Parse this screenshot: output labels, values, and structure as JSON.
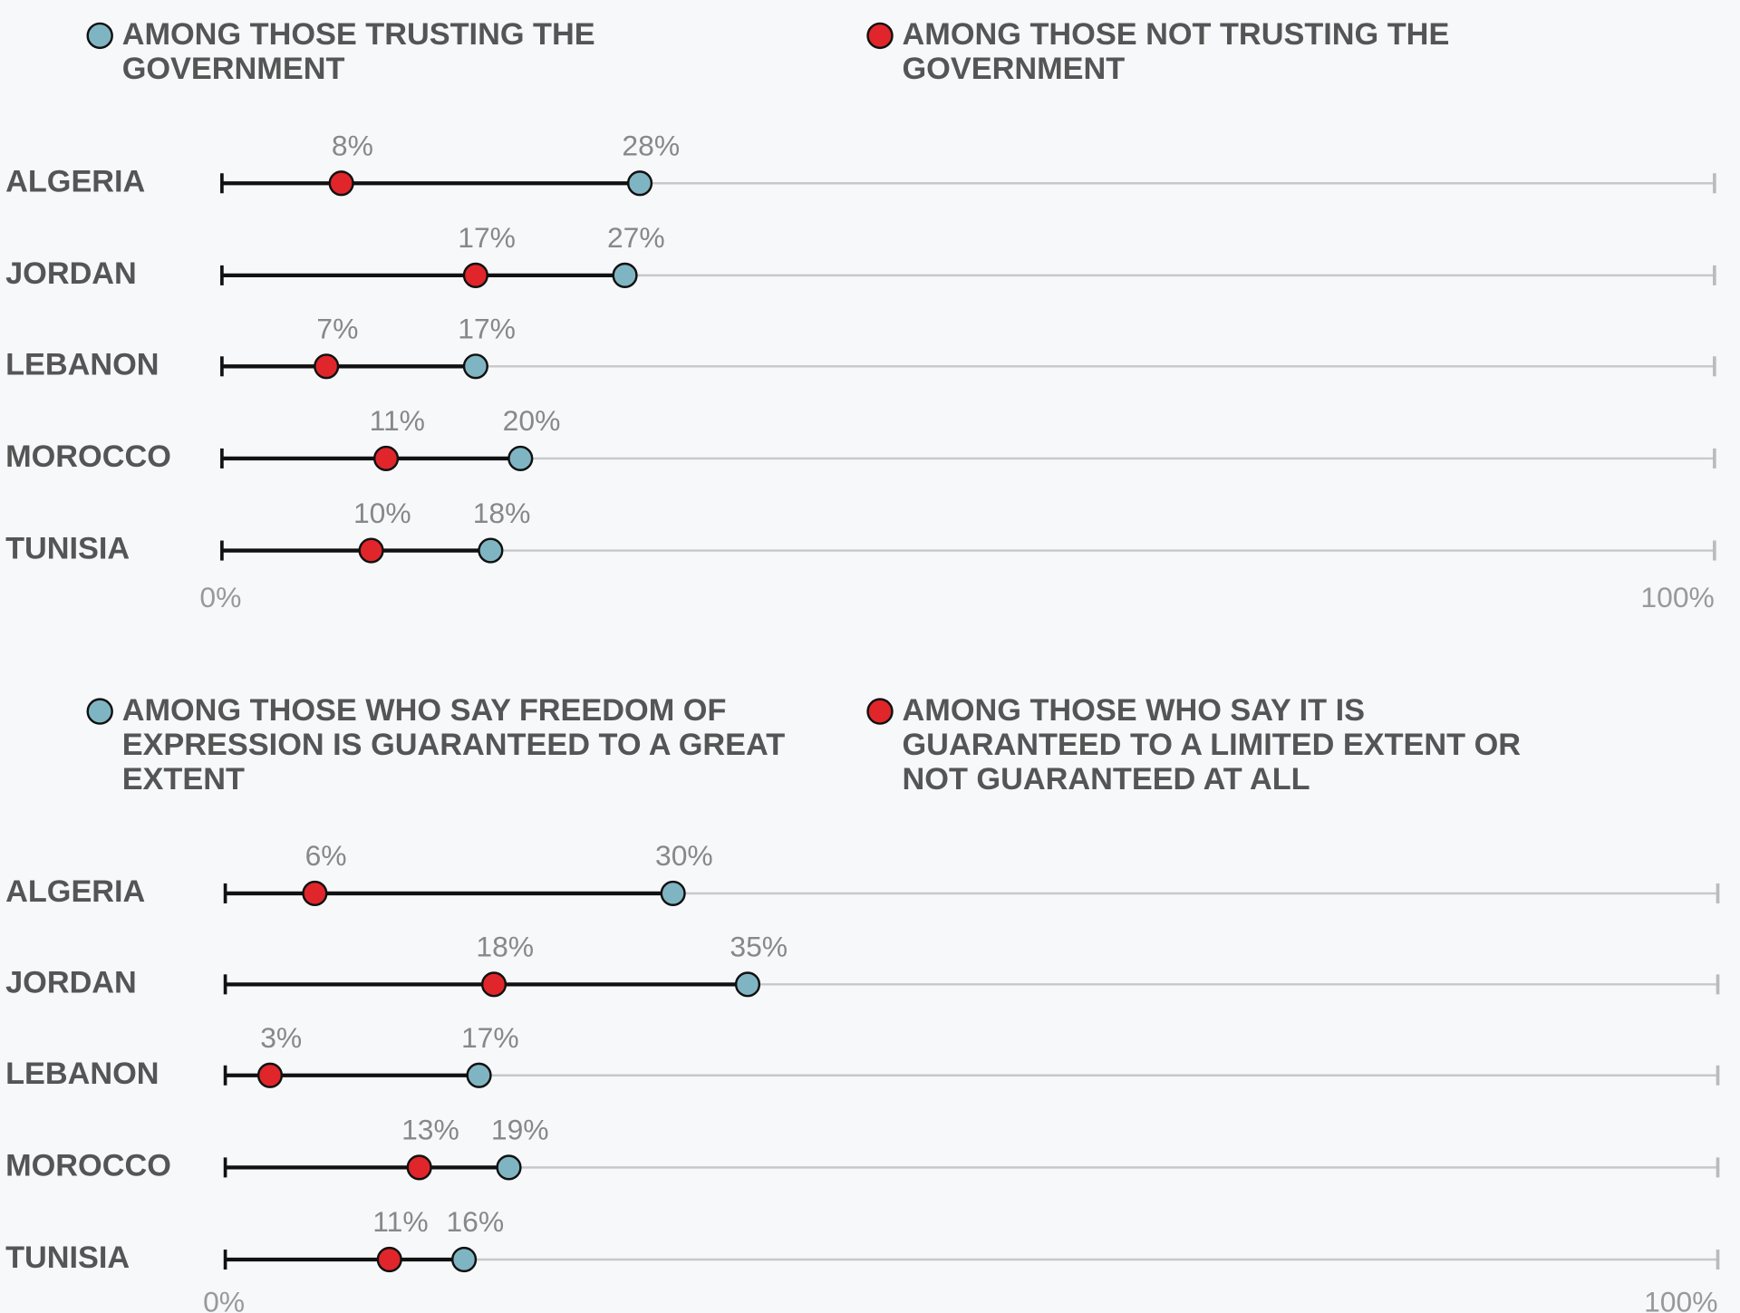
{
  "chart_data": [
    {
      "type": "dumbbell",
      "categories": [
        "ALGERIA",
        "JORDAN",
        "LEBANON",
        "MOROCCO",
        "TUNISIA"
      ],
      "series": [
        {
          "name": "AMONG THOSE TRUSTING THE GOVERNMENT",
          "color": "#7fb5c2",
          "values": [
            28,
            27,
            17,
            20,
            18
          ],
          "value_labels": [
            "28%",
            "27%",
            "17%",
            "20%",
            "18%"
          ]
        },
        {
          "name": "AMONG THOSE NOT TRUSTING THE GOVERNMENT",
          "color": "#e0262b",
          "values": [
            8,
            17,
            7,
            11,
            10
          ],
          "value_labels": [
            "8%",
            "17%",
            "7%",
            "11%",
            "10%"
          ]
        }
      ],
      "xlim": [
        0,
        100
      ],
      "xticks": [
        {
          "value": 0,
          "label": "0%"
        },
        {
          "value": 100,
          "label": "100%"
        }
      ]
    },
    {
      "type": "dumbbell",
      "categories": [
        "ALGERIA",
        "JORDAN",
        "LEBANON",
        "MOROCCO",
        "TUNISIA"
      ],
      "series": [
        {
          "name": "AMONG THOSE WHO SAY FREEDOM OF EXPRESSION IS GUARANTEED TO A GREAT EXTENT",
          "color": "#7fb5c2",
          "values": [
            30,
            35,
            17,
            19,
            16
          ],
          "value_labels": [
            "30%",
            "35%",
            "17%",
            "19%",
            "16%"
          ]
        },
        {
          "name": "AMONG THOSE WHO SAY IT IS GUARANTEED TO A LIMITED EXTENT OR NOT GUARANTEED AT ALL",
          "color": "#e0262b",
          "values": [
            6,
            18,
            3,
            13,
            11
          ],
          "value_labels": [
            "6%",
            "18%",
            "3%",
            "13%",
            "11%"
          ]
        }
      ],
      "xlim": [
        0,
        100
      ],
      "xticks": [
        {
          "value": 0,
          "label": "0%"
        },
        {
          "value": 100,
          "label": "100%"
        }
      ]
    }
  ]
}
